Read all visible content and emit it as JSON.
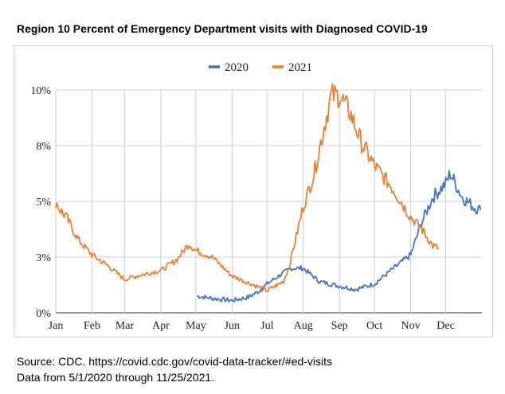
{
  "title": "Region 10 Percent of Emergency Department visits with Diagnosed COVID-19",
  "source_line1": "Source: CDC. https://covid.cdc.gov/covid-data-tracker/#ed-visits",
  "source_line2": "Data from 5/1/2020 through 11/25/2021.",
  "chart_data": {
    "type": "line",
    "title": "Region 10 Percent of Emergency Department visits with Diagnosed COVID-19",
    "xlabel": "",
    "ylabel": "",
    "x_unit": "day of year",
    "xlim": [
      1,
      366
    ],
    "ylim": [
      0,
      10
    ],
    "y_ticks": [
      0,
      2.5,
      5,
      7.5,
      10
    ],
    "y_tick_labels": [
      "0%",
      "3%",
      "5%",
      "8%",
      "10%"
    ],
    "x_ticks": [
      1,
      32,
      60,
      91,
      121,
      152,
      182,
      213,
      244,
      274,
      305,
      335
    ],
    "x_tick_labels": [
      "Jan",
      "Feb",
      "Mar",
      "Apr",
      "May",
      "Jun",
      "Jul",
      "Aug",
      "Sep",
      "Oct",
      "Nov",
      "Dec"
    ],
    "grid": true,
    "legend_position": "top-center",
    "series": [
      {
        "name": "2020",
        "color": "#4472C4",
        "x": [
          122,
          135,
          152,
          166,
          176,
          182,
          196,
          203,
          213,
          227,
          244,
          258,
          274,
          288,
          305,
          314,
          324,
          335,
          339,
          349,
          359,
          365
        ],
        "y": [
          0.75,
          0.65,
          0.55,
          0.7,
          1.0,
          1.3,
          1.8,
          2.0,
          2.0,
          1.4,
          1.2,
          1.05,
          1.3,
          1.9,
          2.6,
          4.0,
          5.2,
          5.8,
          6.25,
          5.2,
          4.75,
          4.6
        ]
      },
      {
        "name": "2021",
        "color": "#ED7D31",
        "x": [
          1,
          5,
          10,
          20,
          32,
          46,
          60,
          74,
          91,
          105,
          115,
          121,
          135,
          152,
          166,
          182,
          196,
          201,
          213,
          222,
          232,
          237,
          244,
          253,
          263,
          274,
          288,
          305,
          314,
          324,
          329
        ],
        "y": [
          5.0,
          4.6,
          4.3,
          3.3,
          2.6,
          2.1,
          1.5,
          1.7,
          1.9,
          2.4,
          3.1,
          2.8,
          2.5,
          1.65,
          1.35,
          1.0,
          1.4,
          2.1,
          4.75,
          6.2,
          8.6,
          9.75,
          9.75,
          9.0,
          7.6,
          6.6,
          5.7,
          4.3,
          3.8,
          3.0,
          2.9
        ]
      }
    ]
  }
}
